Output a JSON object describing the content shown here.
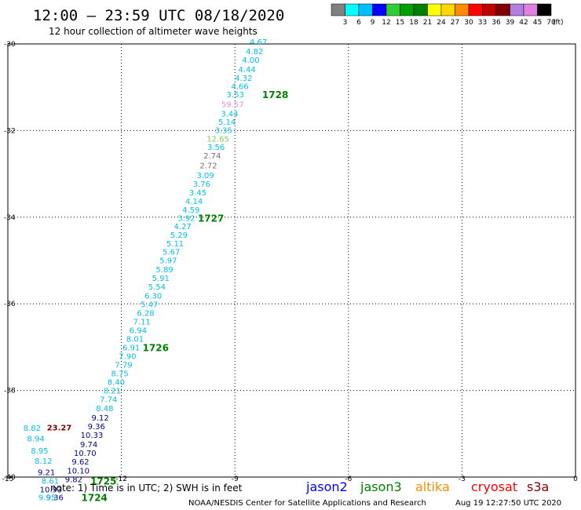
{
  "header": {
    "title": "12:00 – 23:59 UTC 08/18/2020",
    "subtitle": "12 hour collection of altimeter wave heights"
  },
  "legend": {
    "unit": "(ft)",
    "bins": [
      {
        "label": "3",
        "color": "#808080"
      },
      {
        "label": "6",
        "color": "#00ffff"
      },
      {
        "label": "9",
        "color": "#00bfff"
      },
      {
        "label": "12",
        "color": "#0000ff"
      },
      {
        "label": "15",
        "color": "#32cd32"
      },
      {
        "label": "18",
        "color": "#00a000"
      },
      {
        "label": "21",
        "color": "#008000"
      },
      {
        "label": "24",
        "color": "#ffff00"
      },
      {
        "label": "27",
        "color": "#ffd700"
      },
      {
        "label": "30",
        "color": "#ff8c00"
      },
      {
        "label": "33",
        "color": "#ff0000"
      },
      {
        "label": "36",
        "color": "#c00000"
      },
      {
        "label": "39",
        "color": "#800000"
      },
      {
        "label": "42",
        "color": "#b080e0"
      },
      {
        "label": "45",
        "color": "#e080e0"
      },
      {
        "label": "70",
        "color": "#000000"
      }
    ]
  },
  "footer": {
    "note": "note: 1) Time is in UTC; 2) SWH is in feet",
    "credit": "NOAA/NESDIS Center for Satellite Applications and Research",
    "timestamp": "Aug 19 12:27:50 UTC 2020",
    "satellites": [
      {
        "name": "jason2",
        "color": "#0000ff"
      },
      {
        "name": "jason3",
        "color": "#008000"
      },
      {
        "name": "altika",
        "color": "#ff8c00"
      },
      {
        "name": "cryosat",
        "color": "#ff0000"
      },
      {
        "name": "s3a",
        "color": "#800000"
      }
    ]
  },
  "chart_data": {
    "type": "scatter",
    "title": "12:00 – 23:59 UTC 08/18/2020",
    "subtitle": "12 hour collection of altimeter wave heights",
    "x_range": [
      -15,
      0
    ],
    "y_range": [
      -40,
      -30
    ],
    "x_ticks": [
      "-15",
      "-12",
      "-9",
      "-6",
      "-3",
      "0"
    ],
    "y_ticks": [
      "-30",
      "-32",
      "-34",
      "-36",
      "-38",
      "-40"
    ],
    "grid": true,
    "colors": {
      "cyan": "#00bfe6",
      "navy": "#00008b",
      "gray": "#707070",
      "pink": "#e090e0",
      "lime": "#7cd050",
      "maroon": "#800000",
      "green": "#008000"
    },
    "points": [
      {
        "x": -8.38,
        "y": -29.96,
        "v": "4.67",
        "c": "cyan"
      },
      {
        "x": -8.48,
        "y": -30.18,
        "v": "4.82",
        "c": "cyan"
      },
      {
        "x": -8.58,
        "y": -30.38,
        "v": "4.00",
        "c": "cyan"
      },
      {
        "x": -8.68,
        "y": -30.6,
        "v": "4.44",
        "c": "cyan"
      },
      {
        "x": -8.77,
        "y": -30.8,
        "v": "4.32",
        "c": "cyan"
      },
      {
        "x": -8.87,
        "y": -30.99,
        "v": "4.66",
        "c": "cyan"
      },
      {
        "x": -8.99,
        "y": -31.18,
        "v": "3.53",
        "c": "cyan"
      },
      {
        "x": -9.06,
        "y": -31.4,
        "v": "59.57",
        "c": "pink"
      },
      {
        "x": -9.14,
        "y": -31.62,
        "v": "3.44",
        "c": "cyan"
      },
      {
        "x": -9.21,
        "y": -31.81,
        "v": "5.14",
        "c": "cyan"
      },
      {
        "x": -9.3,
        "y": -32.0,
        "v": "3.35",
        "c": "cyan"
      },
      {
        "x": -9.45,
        "y": -32.2,
        "v": "12.65",
        "c": "lime"
      },
      {
        "x": -9.5,
        "y": -32.39,
        "v": "3.56",
        "c": "cyan"
      },
      {
        "x": -9.6,
        "y": -32.59,
        "v": "2.74",
        "c": "gray"
      },
      {
        "x": -9.7,
        "y": -32.82,
        "v": "2.72",
        "c": "gray"
      },
      {
        "x": -9.78,
        "y": -33.04,
        "v": "3.09",
        "c": "cyan"
      },
      {
        "x": -9.88,
        "y": -33.24,
        "v": "3.76",
        "c": "cyan"
      },
      {
        "x": -9.98,
        "y": -33.44,
        "v": "3.45",
        "c": "cyan"
      },
      {
        "x": -10.08,
        "y": -33.64,
        "v": "4.14",
        "c": "cyan"
      },
      {
        "x": -10.16,
        "y": -33.84,
        "v": "4.59",
        "c": "cyan"
      },
      {
        "x": -10.28,
        "y": -34.03,
        "v": "3.92",
        "c": "cyan"
      },
      {
        "x": -10.38,
        "y": -34.22,
        "v": "4.27",
        "c": "cyan"
      },
      {
        "x": -10.48,
        "y": -34.42,
        "v": "5.29",
        "c": "cyan"
      },
      {
        "x": -10.58,
        "y": -34.62,
        "v": "5.11",
        "c": "cyan"
      },
      {
        "x": -10.68,
        "y": -34.81,
        "v": "5.67",
        "c": "cyan"
      },
      {
        "x": -10.76,
        "y": -35.01,
        "v": "5.97",
        "c": "cyan"
      },
      {
        "x": -10.86,
        "y": -35.22,
        "v": "5.89",
        "c": "cyan"
      },
      {
        "x": -10.96,
        "y": -35.42,
        "v": "5.91",
        "c": "cyan"
      },
      {
        "x": -11.06,
        "y": -35.62,
        "v": "5.54",
        "c": "cyan"
      },
      {
        "x": -11.16,
        "y": -35.82,
        "v": "6.30",
        "c": "cyan"
      },
      {
        "x": -11.26,
        "y": -36.02,
        "v": "5.47",
        "c": "cyan"
      },
      {
        "x": -11.36,
        "y": -36.22,
        "v": "6.28",
        "c": "cyan"
      },
      {
        "x": -11.46,
        "y": -36.42,
        "v": "7.11",
        "c": "cyan"
      },
      {
        "x": -11.56,
        "y": -36.62,
        "v": "6.94",
        "c": "cyan"
      },
      {
        "x": -11.64,
        "y": -36.82,
        "v": "8.01",
        "c": "cyan"
      },
      {
        "x": -11.74,
        "y": -37.02,
        "v": "6.91",
        "c": "cyan"
      },
      {
        "x": -11.84,
        "y": -37.22,
        "v": "7.90",
        "c": "cyan"
      },
      {
        "x": -11.94,
        "y": -37.42,
        "v": "7.79",
        "c": "cyan"
      },
      {
        "x": -12.04,
        "y": -37.62,
        "v": "8.75",
        "c": "cyan"
      },
      {
        "x": -12.14,
        "y": -37.82,
        "v": "8.40",
        "c": "cyan"
      },
      {
        "x": -12.24,
        "y": -38.02,
        "v": "8.21",
        "c": "cyan"
      },
      {
        "x": -12.34,
        "y": -38.22,
        "v": "7.74",
        "c": "cyan"
      },
      {
        "x": -12.44,
        "y": -38.42,
        "v": "8.48",
        "c": "cyan"
      },
      {
        "x": -12.56,
        "y": -38.64,
        "v": "9.12",
        "c": "navy"
      },
      {
        "x": -12.66,
        "y": -38.84,
        "v": "9.36",
        "c": "navy"
      },
      {
        "x": -12.78,
        "y": -39.04,
        "v": "10.33",
        "c": "navy"
      },
      {
        "x": -12.86,
        "y": -39.26,
        "v": "9.74",
        "c": "navy"
      },
      {
        "x": -12.96,
        "y": -39.46,
        "v": "10.70",
        "c": "navy"
      },
      {
        "x": -13.08,
        "y": -39.66,
        "v": "9.62",
        "c": "navy"
      },
      {
        "x": -13.14,
        "y": -39.86,
        "v": "10.10",
        "c": "navy"
      },
      {
        "x": -13.26,
        "y": -40.06,
        "v": "9.82",
        "c": "navy"
      },
      {
        "x": -14.36,
        "y": -38.88,
        "v": "8.82",
        "c": "cyan"
      },
      {
        "x": -14.26,
        "y": -39.12,
        "v": "8.94",
        "c": "cyan"
      },
      {
        "x": -14.16,
        "y": -39.4,
        "v": "8.95",
        "c": "cyan"
      },
      {
        "x": -14.06,
        "y": -39.64,
        "v": "8.12",
        "c": "cyan"
      },
      {
        "x": -13.98,
        "y": -39.9,
        "v": "9.21",
        "c": "navy"
      },
      {
        "x": -13.88,
        "y": -40.1,
        "v": "8.61",
        "c": "cyan"
      },
      {
        "x": -13.86,
        "y": -40.3,
        "v": "10.93",
        "c": "navy"
      },
      {
        "x": -13.76,
        "y": -40.48,
        "v": "9.36",
        "c": "navy"
      },
      {
        "x": -13.96,
        "y": -40.48,
        "v": "9.95",
        "c": "cyan"
      },
      {
        "x": -13.64,
        "y": -38.87,
        "v": "23.27",
        "c": "maroon"
      }
    ],
    "passes": [
      {
        "x": -8.28,
        "y": -31.18,
        "label": "1728"
      },
      {
        "x": -9.98,
        "y": -34.03,
        "label": "1727"
      },
      {
        "x": -11.44,
        "y": -37.02,
        "label": "1726"
      },
      {
        "x": -12.82,
        "y": -40.1,
        "label": "1725"
      },
      {
        "x": -13.06,
        "y": -40.48,
        "label": "1724"
      }
    ]
  }
}
